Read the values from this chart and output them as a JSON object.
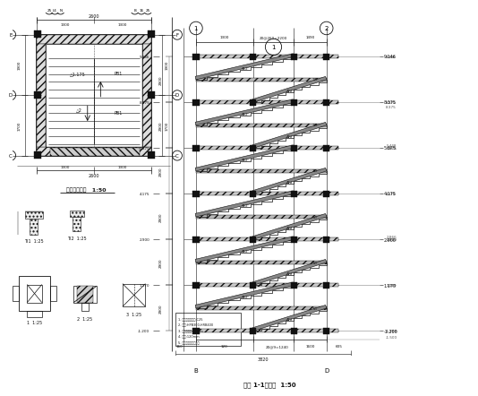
{
  "bg_color": "#ffffff",
  "line_color": "#000000",
  "title": "楼梯 1-1剖面图  1:50",
  "title2": "楼梯层平面图   1:50",
  "lc": "#111111",
  "gray": "#888888",
  "dark": "#222222"
}
